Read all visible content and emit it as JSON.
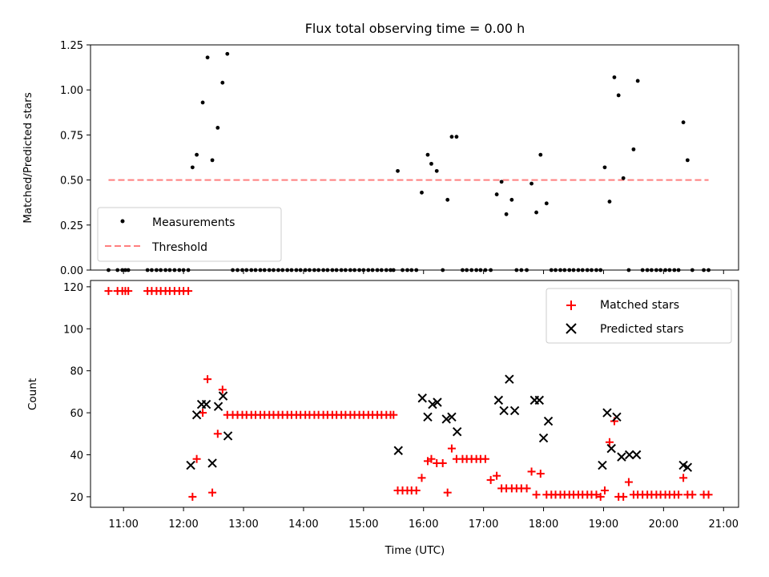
{
  "title": "Flux total observing time = 0.00 h",
  "chart_data": [
    {
      "type": "scatter",
      "ylabel": "Matched/Predicted stars",
      "ylim": [
        0,
        1.25
      ],
      "yticks": [
        "0.00",
        "0.25",
        "0.50",
        "0.75",
        "1.00",
        "1.25"
      ],
      "yticks_values": [
        0,
        0.25,
        0.5,
        0.75,
        1.0,
        1.25
      ],
      "xlim": [
        10.45,
        21.25
      ],
      "legend_placement": "lower-left",
      "threshold": {
        "name": "Threshold",
        "value": 0.5,
        "x_range": [
          10.75,
          20.75
        ],
        "color": "#ff7f7f"
      },
      "series": [
        {
          "name": "Measurements",
          "color": "#000000",
          "x": [
            10.75,
            10.9,
            10.98,
            11.03,
            11.08,
            11.4,
            11.47,
            11.55,
            11.62,
            11.7,
            11.77,
            11.85,
            11.93,
            12.0,
            12.08,
            12.15,
            12.22,
            12.32,
            12.4,
            12.48,
            12.57,
            12.65,
            12.73,
            12.82,
            12.9,
            12.98,
            13.05,
            13.13,
            13.2,
            13.28,
            13.35,
            13.43,
            13.5,
            13.58,
            13.65,
            13.73,
            13.8,
            13.88,
            13.95,
            14.03,
            14.1,
            14.18,
            14.25,
            14.33,
            14.4,
            14.48,
            14.55,
            14.63,
            14.7,
            14.78,
            14.85,
            14.93,
            15.0,
            15.08,
            15.15,
            15.23,
            15.3,
            15.38,
            15.45,
            15.5,
            15.57,
            15.65,
            15.73,
            15.8,
            15.88,
            15.97,
            16.07,
            16.13,
            16.22,
            16.32,
            16.4,
            16.47,
            16.55,
            16.65,
            16.72,
            16.8,
            16.88,
            16.95,
            17.03,
            17.12,
            17.22,
            17.3,
            17.38,
            17.47,
            17.55,
            17.63,
            17.72,
            17.8,
            17.88,
            17.95,
            18.05,
            18.13,
            18.2,
            18.28,
            18.35,
            18.43,
            18.5,
            18.58,
            18.65,
            18.73,
            18.8,
            18.88,
            18.95,
            19.02,
            19.1,
            19.18,
            19.25,
            19.33,
            19.42,
            19.5,
            19.57,
            19.65,
            19.73,
            19.8,
            19.88,
            19.95,
            20.03,
            20.1,
            20.18,
            20.25,
            20.33,
            20.4,
            20.48,
            20.67,
            20.75
          ],
          "y": [
            0,
            0,
            0,
            0,
            0,
            0,
            0,
            0,
            0,
            0,
            0,
            0,
            0,
            0,
            0,
            0.57,
            0.64,
            0.93,
            1.18,
            0.61,
            0.79,
            1.04,
            1.2,
            0,
            0,
            0,
            0,
            0,
            0,
            0,
            0,
            0,
            0,
            0,
            0,
            0,
            0,
            0,
            0,
            0,
            0,
            0,
            0,
            0,
            0,
            0,
            0,
            0,
            0,
            0,
            0,
            0,
            0,
            0,
            0,
            0,
            0,
            0,
            0,
            0,
            0.55,
            0,
            0,
            0,
            0,
            0.43,
            0.64,
            0.59,
            0.55,
            0,
            0.39,
            0.74,
            0.74,
            0,
            0,
            0,
            0,
            0,
            0,
            0,
            0.42,
            0.49,
            0.31,
            0.39,
            0,
            0,
            0,
            0.48,
            0.32,
            0.64,
            0.37,
            0,
            0,
            0,
            0,
            0,
            0,
            0,
            0,
            0,
            0,
            0,
            0,
            0.57,
            0.38,
            1.07,
            0.97,
            0.51,
            0,
            0.67,
            1.05,
            0,
            0,
            0,
            0,
            0,
            0,
            0,
            0,
            0,
            0.82,
            0.61,
            0,
            0,
            0
          ]
        }
      ]
    },
    {
      "type": "scatter",
      "xlabel": "Time (UTC)",
      "ylabel": "Count",
      "ylim": [
        15,
        123
      ],
      "yticks": [
        "20",
        "40",
        "60",
        "80",
        "100",
        "120"
      ],
      "yticks_values": [
        20,
        40,
        60,
        80,
        100,
        120
      ],
      "xlim": [
        10.45,
        21.25
      ],
      "xticks": [
        "11:00",
        "12:00",
        "13:00",
        "14:00",
        "15:00",
        "16:00",
        "17:00",
        "18:00",
        "19:00",
        "20:00",
        "21:00"
      ],
      "xticks_values": [
        11,
        12,
        13,
        14,
        15,
        16,
        17,
        18,
        19,
        20,
        21
      ],
      "legend_placement": "upper-right",
      "series": [
        {
          "name": "Matched stars",
          "color": "#ff0000",
          "marker": "plus",
          "x": [
            10.75,
            10.9,
            10.98,
            11.03,
            11.08,
            11.4,
            11.47,
            11.55,
            11.62,
            11.7,
            11.77,
            11.85,
            11.93,
            12.0,
            12.08,
            12.15,
            12.22,
            12.32,
            12.4,
            12.48,
            12.57,
            12.65,
            12.73,
            12.82,
            12.9,
            12.98,
            13.05,
            13.13,
            13.2,
            13.28,
            13.35,
            13.43,
            13.5,
            13.58,
            13.65,
            13.73,
            13.8,
            13.88,
            13.95,
            14.03,
            14.1,
            14.18,
            14.25,
            14.33,
            14.4,
            14.48,
            14.55,
            14.63,
            14.7,
            14.78,
            14.85,
            14.93,
            15.0,
            15.08,
            15.15,
            15.23,
            15.3,
            15.38,
            15.45,
            15.5,
            15.57,
            15.65,
            15.73,
            15.8,
            15.88,
            15.97,
            16.07,
            16.13,
            16.22,
            16.32,
            16.4,
            16.47,
            16.55,
            16.65,
            16.72,
            16.8,
            16.88,
            16.95,
            17.03,
            17.12,
            17.22,
            17.3,
            17.38,
            17.47,
            17.55,
            17.63,
            17.72,
            17.8,
            17.88,
            17.95,
            18.05,
            18.13,
            18.2,
            18.28,
            18.35,
            18.43,
            18.5,
            18.58,
            18.65,
            18.73,
            18.8,
            18.88,
            18.95,
            19.02,
            19.1,
            19.18,
            19.25,
            19.33,
            19.42,
            19.5,
            19.57,
            19.65,
            19.73,
            19.8,
            19.88,
            19.95,
            20.03,
            20.1,
            20.18,
            20.25,
            20.33,
            20.4,
            20.48,
            20.67,
            20.75
          ],
          "y": [
            118,
            118,
            118,
            118,
            118,
            118,
            118,
            118,
            118,
            118,
            118,
            118,
            118,
            118,
            118,
            20,
            38,
            60,
            76,
            22,
            50,
            71,
            59,
            59,
            59,
            59,
            59,
            59,
            59,
            59,
            59,
            59,
            59,
            59,
            59,
            59,
            59,
            59,
            59,
            59,
            59,
            59,
            59,
            59,
            59,
            59,
            59,
            59,
            59,
            59,
            59,
            59,
            59,
            59,
            59,
            59,
            59,
            59,
            59,
            59,
            23,
            23,
            23,
            23,
            23,
            29,
            37,
            38,
            36,
            36,
            22,
            43,
            38,
            38,
            38,
            38,
            38,
            38,
            38,
            28,
            30,
            24,
            24,
            24,
            24,
            24,
            24,
            32,
            21,
            31,
            21,
            21,
            21,
            21,
            21,
            21,
            21,
            21,
            21,
            21,
            21,
            21,
            20,
            23,
            46,
            56,
            20,
            20,
            27,
            21,
            21,
            21,
            21,
            21,
            21,
            21,
            21,
            21,
            21,
            21,
            29,
            21,
            21,
            21,
            21
          ]
        },
        {
          "name": "Predicted stars",
          "color": "#000000",
          "marker": "x",
          "x": [
            12.12,
            12.22,
            12.3,
            12.38,
            12.48,
            12.58,
            12.66,
            12.74,
            15.58,
            15.98,
            16.07,
            16.15,
            16.23,
            16.38,
            16.47,
            16.56,
            17.25,
            17.34,
            17.43,
            17.52,
            17.85,
            17.93,
            18.0,
            18.08,
            18.98,
            19.06,
            19.13,
            19.22,
            19.3,
            19.43,
            19.55,
            20.33,
            20.4
          ],
          "y": [
            35,
            59,
            64,
            64,
            36,
            63,
            68,
            49,
            42,
            67,
            58,
            64,
            65,
            57,
            58,
            51,
            66,
            61,
            76,
            61,
            66,
            66,
            48,
            56,
            35,
            60,
            43,
            58,
            39,
            40,
            40,
            35,
            34
          ]
        }
      ]
    }
  ]
}
